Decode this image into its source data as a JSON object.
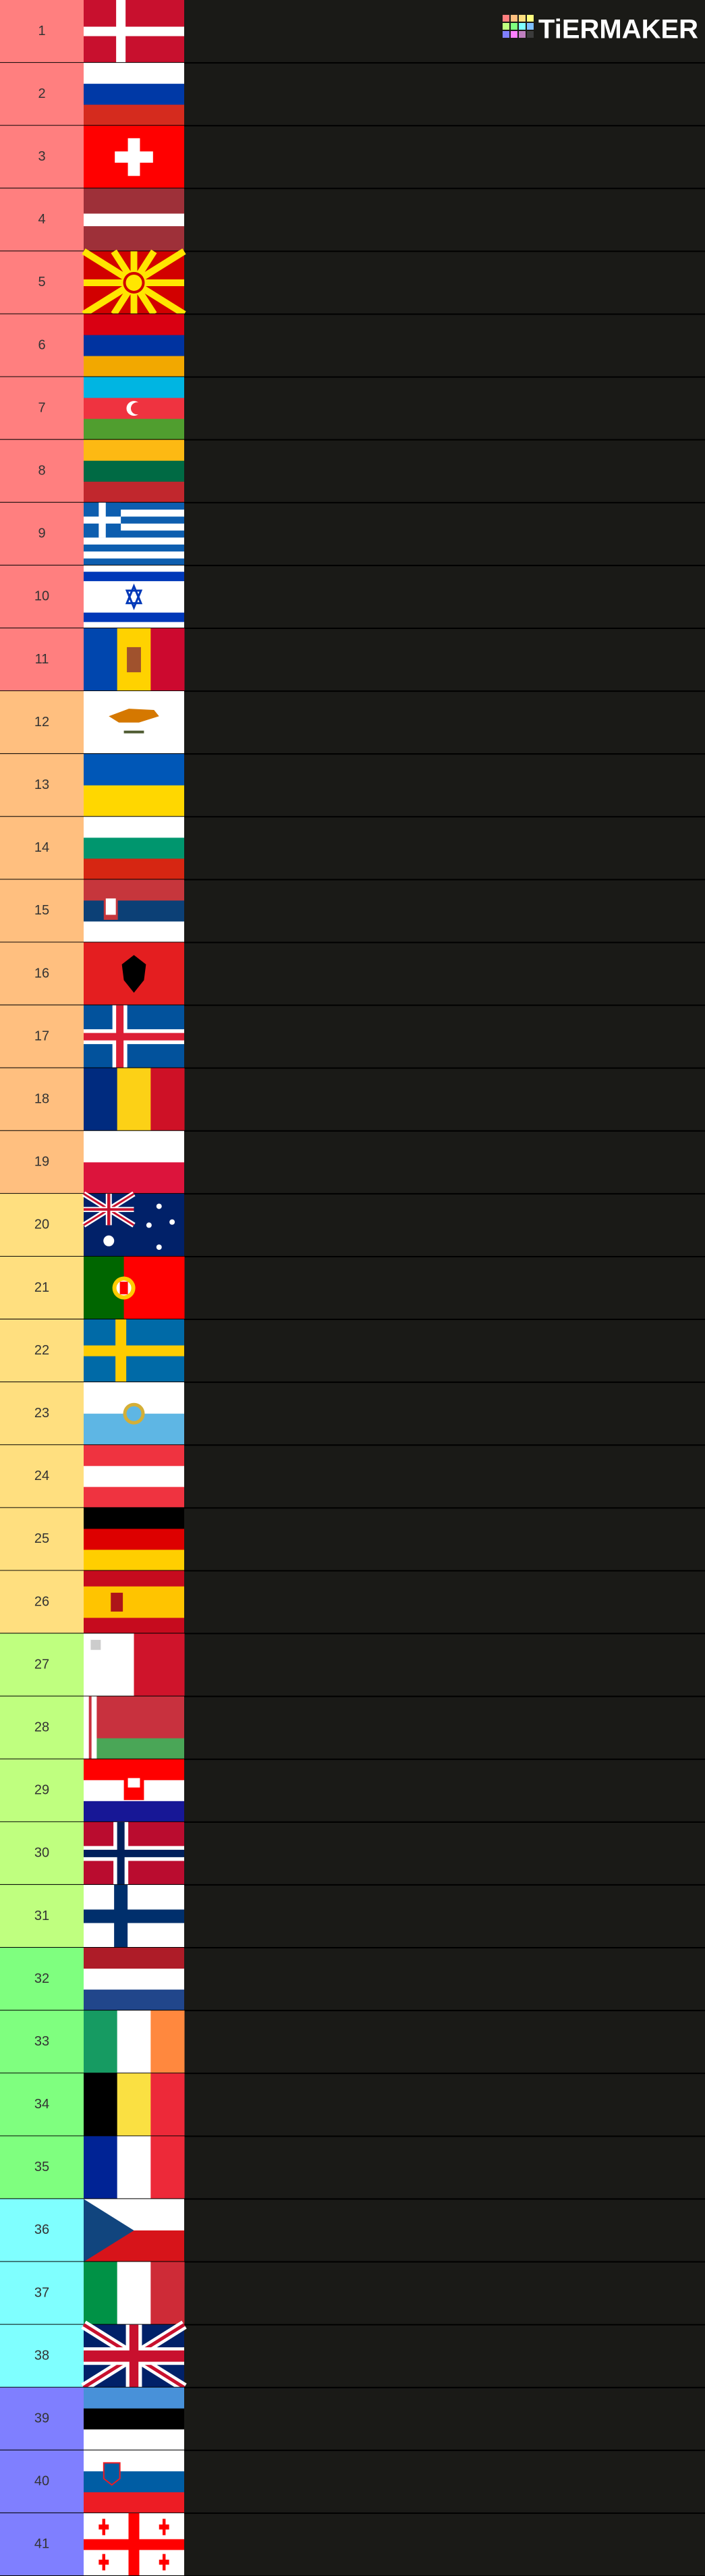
{
  "logo": "TiERMAKER",
  "rows": [
    {
      "label": "1",
      "color": "#ff7f7f"
    },
    {
      "label": "2",
      "color": "#ff7f7f"
    },
    {
      "label": "3",
      "color": "#ff7f7f"
    },
    {
      "label": "4",
      "color": "#ff7f7f"
    },
    {
      "label": "5",
      "color": "#ff7f7f"
    },
    {
      "label": "6",
      "color": "#ff7f7f"
    },
    {
      "label": "7",
      "color": "#ff7f7f"
    },
    {
      "label": "8",
      "color": "#ff7f7f"
    },
    {
      "label": "9",
      "color": "#ff7f7f"
    },
    {
      "label": "10",
      "color": "#ff7f7f"
    },
    {
      "label": "11",
      "color": "#ff7f7f"
    },
    {
      "label": "12",
      "color": "#ffbf7f"
    },
    {
      "label": "13",
      "color": "#ffbf7f"
    },
    {
      "label": "14",
      "color": "#ffbf7f"
    },
    {
      "label": "15",
      "color": "#ffbf7f"
    },
    {
      "label": "16",
      "color": "#ffbf7f"
    },
    {
      "label": "17",
      "color": "#ffbf7f"
    },
    {
      "label": "18",
      "color": "#ffbf7f"
    },
    {
      "label": "19",
      "color": "#ffbf7f"
    },
    {
      "label": "20",
      "color": "#ffdf7f"
    },
    {
      "label": "21",
      "color": "#ffdf7f"
    },
    {
      "label": "22",
      "color": "#ffdf7f"
    },
    {
      "label": "23",
      "color": "#ffdf7f"
    },
    {
      "label": "24",
      "color": "#ffdf7f"
    },
    {
      "label": "25",
      "color": "#ffdf7f"
    },
    {
      "label": "26",
      "color": "#ffdf7f"
    },
    {
      "label": "27",
      "color": "#bfff7f"
    },
    {
      "label": "28",
      "color": "#bfff7f"
    },
    {
      "label": "29",
      "color": "#bfff7f"
    },
    {
      "label": "30",
      "color": "#bfff7f"
    },
    {
      "label": "31",
      "color": "#bfff7f"
    },
    {
      "label": "32",
      "color": "#7fff7f"
    },
    {
      "label": "33",
      "color": "#7fff7f"
    },
    {
      "label": "34",
      "color": "#7fff7f"
    },
    {
      "label": "35",
      "color": "#7fff7f"
    },
    {
      "label": "36",
      "color": "#7fffff"
    },
    {
      "label": "37",
      "color": "#7fffff"
    },
    {
      "label": "38",
      "color": "#7fffff"
    },
    {
      "label": "39",
      "color": "#7f7fff"
    },
    {
      "label": "40",
      "color": "#7f7fff"
    },
    {
      "label": "41",
      "color": "#7f7fff"
    }
  ]
}
